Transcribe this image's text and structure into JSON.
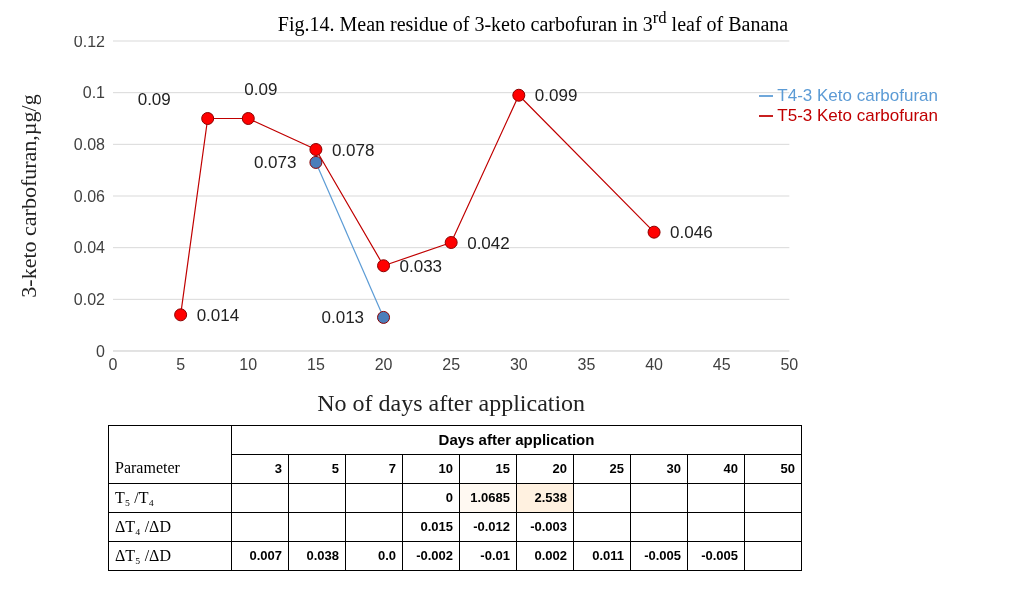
{
  "chart_data": [
    {
      "type": "line",
      "title": "Fig.14. Mean residue of 3-keto carbofuran in 3$^{rd}$ leaf of Banana",
      "xlabel": "No of days after application",
      "ylabel": "3-keto carbofuran,µg/g",
      "xlim": [
        0,
        50
      ],
      "xticks": [
        0,
        5,
        10,
        15,
        20,
        25,
        30,
        35,
        40,
        45,
        50
      ],
      "ylim": [
        0,
        0.12
      ],
      "yticks": [
        0,
        0.02,
        0.04,
        0.06,
        0.08,
        0.1,
        0.12
      ],
      "grid": "y",
      "legend": "top right",
      "marker": "circle",
      "data_labels": true,
      "series": [
        {
          "name": "T4-3 Keto carbofuran",
          "color": "#4a7ebb",
          "x": [
            15,
            20
          ],
          "values": [
            0.073,
            0.013
          ]
        },
        {
          "name": "T5-3 Keto carbofuran",
          "color": "#ff0000",
          "x": [
            5,
            7,
            10,
            15,
            20,
            25,
            30,
            40
          ],
          "values": [
            0.014,
            0.09,
            0.09,
            0.078,
            0.033,
            0.042,
            0.099,
            0.046
          ]
        }
      ]
    },
    {
      "type": "heatmap",
      "data_labels": true,
      "xlabel": "Days after application",
      "ylabel": "Parameter",
      "categories": [
        "3",
        "5",
        "7",
        "10",
        "15",
        "20",
        "25",
        "30",
        "40",
        "50"
      ],
      "y_categories": [
        "T₅ /T₄",
        "ΔT₄ /ΔD",
        "ΔT₅ /ΔD"
      ],
      "cells": [
        [
          null,
          null,
          null,
          0,
          1.0685,
          2.538,
          null,
          null,
          null,
          null
        ],
        [
          null,
          null,
          null,
          0.015,
          -0.012,
          -0.003,
          null,
          null,
          null,
          null
        ],
        [
          0.007,
          0.038,
          0.0,
          -0.002,
          -0.01,
          0.002,
          0.011,
          -0.005,
          -0.005,
          null
        ]
      ],
      "cell_labels": [
        [
          null,
          null,
          null,
          "0",
          "1.0685",
          "2.538",
          null,
          null,
          null,
          null
        ],
        [
          null,
          null,
          null,
          "0.015",
          "-0.012",
          "-0.003",
          null,
          null,
          null,
          null
        ],
        [
          "0.007",
          "0.038",
          "0.0",
          "-0.002",
          "-0.01",
          "0.002",
          "0.011",
          "-0.005",
          "-0.005",
          null
        ]
      ]
    }
  ]
}
